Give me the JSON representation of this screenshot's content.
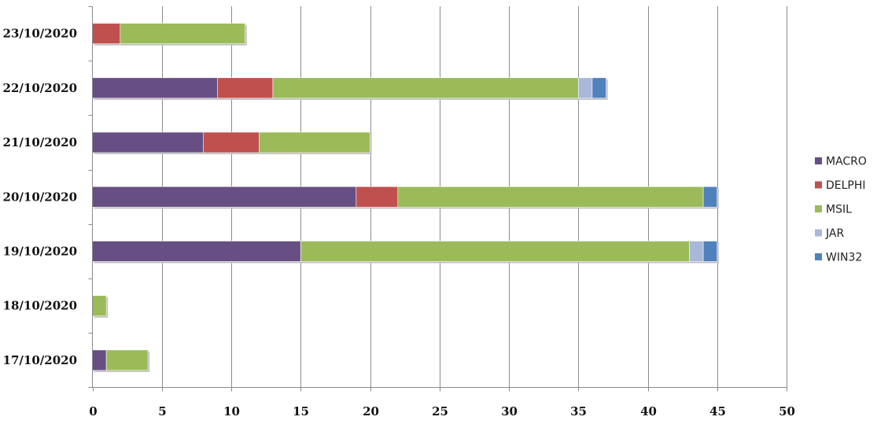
{
  "chart_data": {
    "type": "bar",
    "orientation": "horizontal",
    "stacked": true,
    "categories": [
      "17/10/2020",
      "18/10/2020",
      "19/10/2020",
      "20/10/2020",
      "21/10/2020",
      "22/10/2020",
      "23/10/2020"
    ],
    "series": [
      {
        "name": "MACRO",
        "color": "#674f84",
        "values": [
          1,
          0,
          15,
          19,
          8,
          9,
          0
        ]
      },
      {
        "name": "DELPHI",
        "color": "#c0504d",
        "values": [
          0,
          0,
          0,
          3,
          4,
          4,
          2
        ]
      },
      {
        "name": "MSIL",
        "color": "#9bbb59",
        "values": [
          3,
          1,
          28,
          22,
          8,
          22,
          9
        ]
      },
      {
        "name": "JAR",
        "color": "#a9b8d9",
        "values": [
          0,
          0,
          1,
          0,
          0,
          1,
          0
        ]
      },
      {
        "name": "WIN32",
        "color": "#4f81bd",
        "values": [
          0,
          0,
          1,
          1,
          0,
          1,
          0
        ]
      }
    ],
    "x_ticks": [
      "0",
      "5",
      "10",
      "15",
      "20",
      "25",
      "30",
      "35",
      "40",
      "45",
      "50"
    ],
    "xlim": [
      0,
      50
    ],
    "xlabel": "",
    "ylabel": "",
    "title": "",
    "grid": "vertical",
    "legend_position": "right"
  }
}
